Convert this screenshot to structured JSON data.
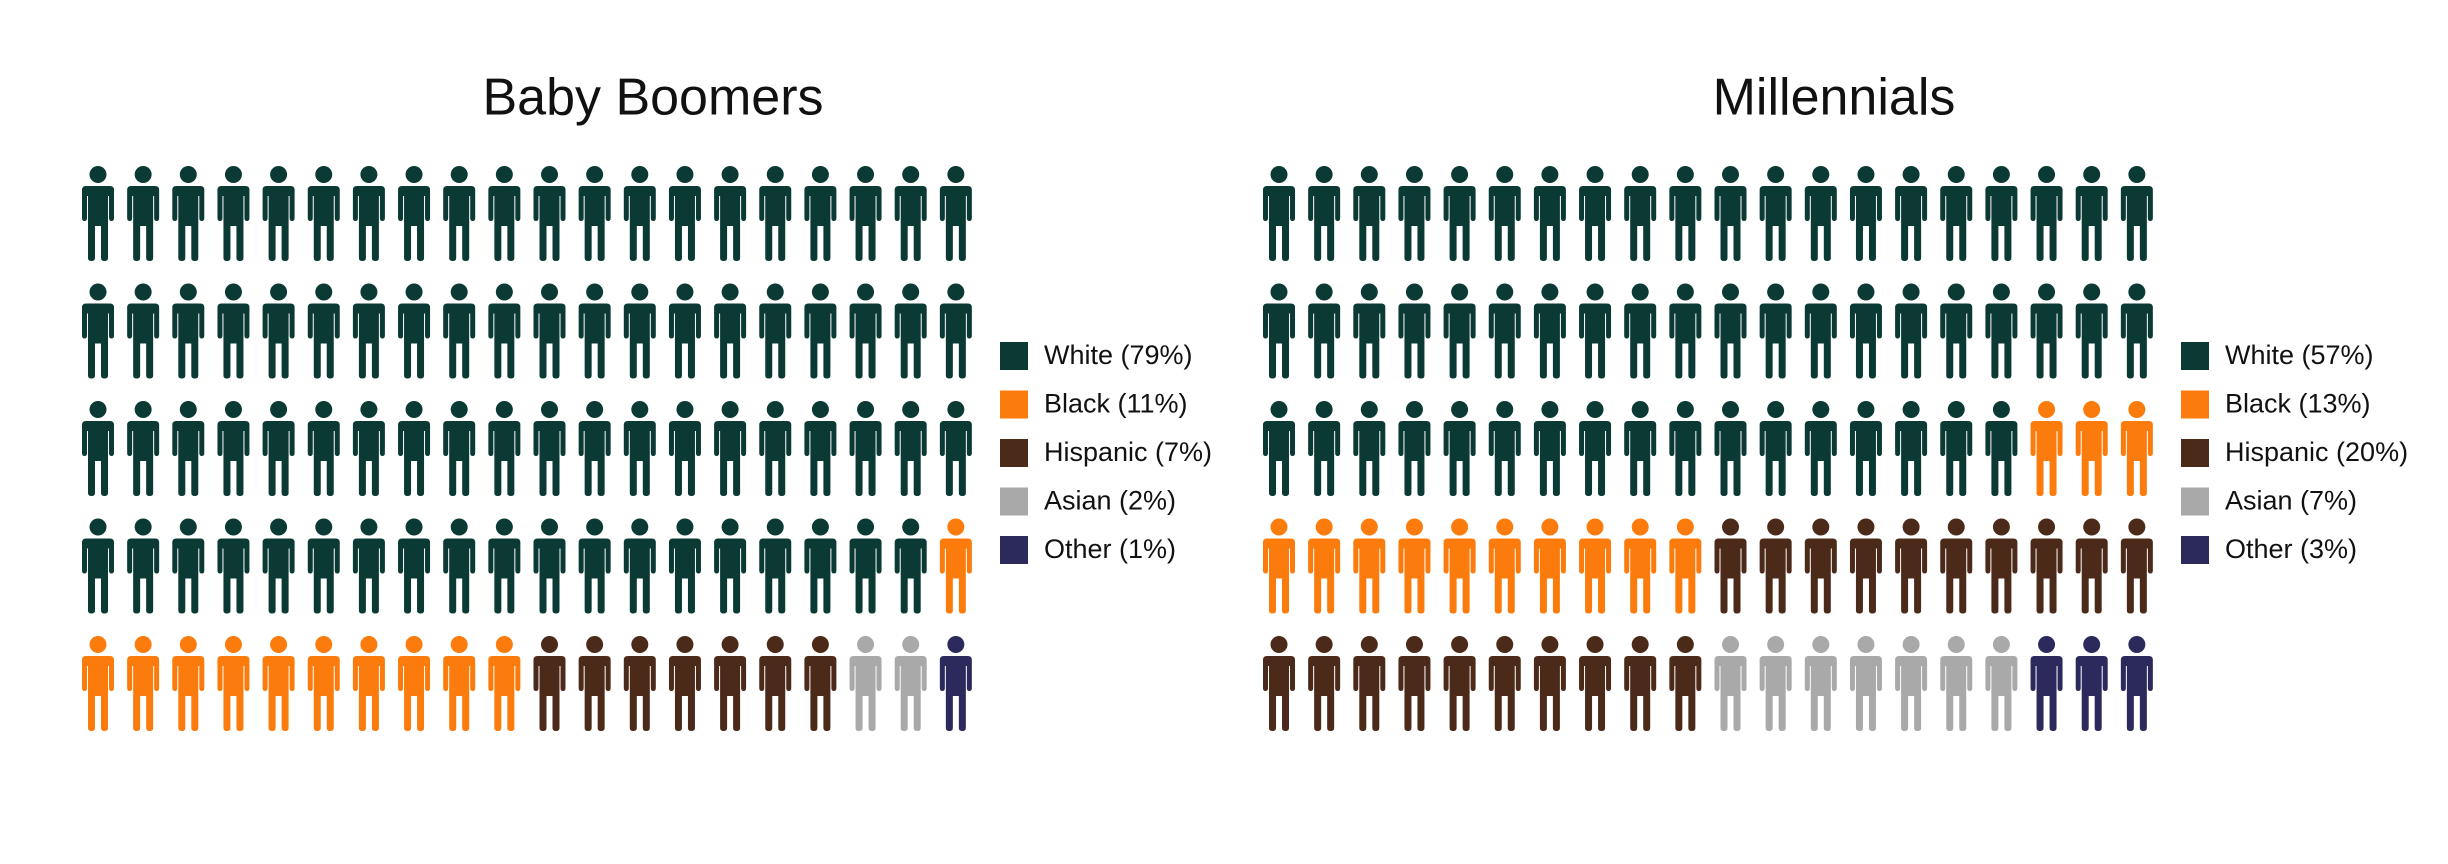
{
  "chart_data": [
    {
      "type": "pictogram",
      "title": "Baby Boomers",
      "rows": 5,
      "columns": 20,
      "series": [
        {
          "name": "White (79%)",
          "color": "#0b3a34",
          "value": 79
        },
        {
          "name": "Black (11%)",
          "color": "#fb7c0c",
          "value": 11
        },
        {
          "name": "Hispanic (7%)",
          "color": "#4b2a19",
          "value": 7
        },
        {
          "name": "Asian (2%)",
          "color": "#a9a9a9",
          "value": 2
        },
        {
          "name": "Other (1%)",
          "color": "#2c2a5c",
          "value": 1
        }
      ]
    },
    {
      "type": "pictogram",
      "title": "Millennials",
      "rows": 5,
      "columns": 20,
      "series": [
        {
          "name": "White (57%)",
          "color": "#0b3a34",
          "value": 57
        },
        {
          "name": "Black (13%)",
          "color": "#fb7c0c",
          "value": 13
        },
        {
          "name": "Hispanic (20%)",
          "color": "#4b2a19",
          "value": 20
        },
        {
          "name": "Asian (7%)",
          "color": "#a9a9a9",
          "value": 7
        },
        {
          "name": "Other (3%)",
          "color": "#2c2a5c",
          "value": 3
        }
      ]
    }
  ]
}
